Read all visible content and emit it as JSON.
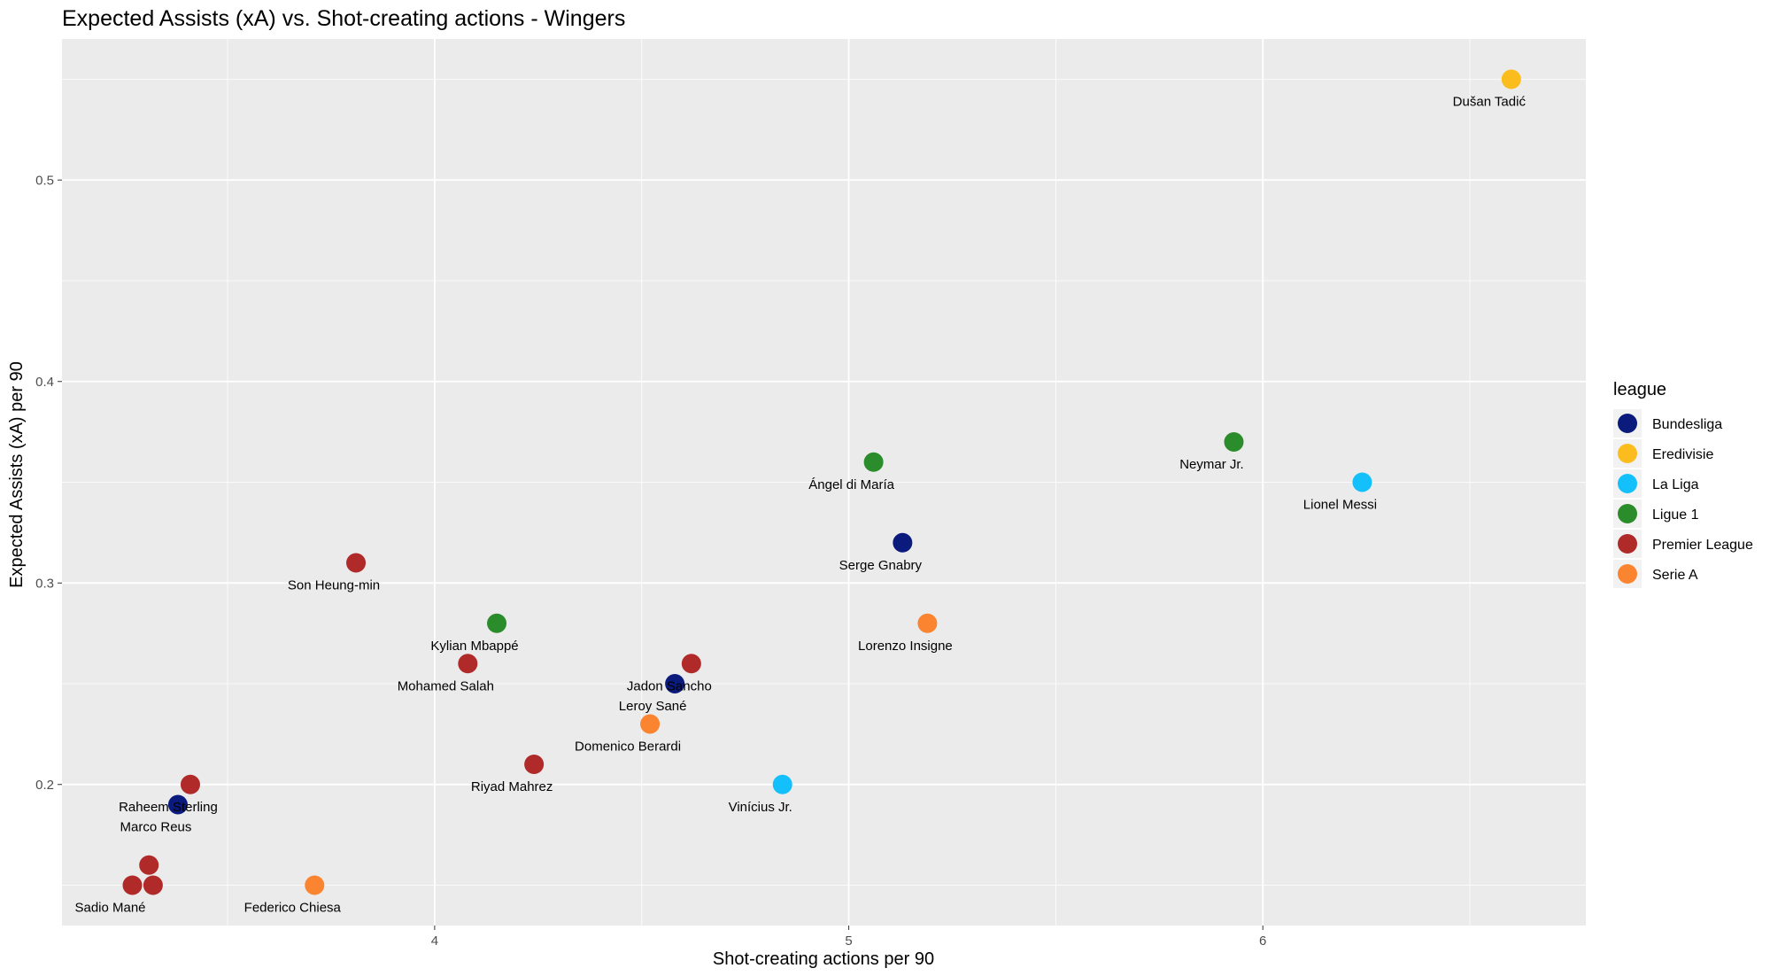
{
  "chart_data": {
    "type": "scatter",
    "title": "Expected Assists (xA) vs. Shot-creating actions - Wingers",
    "xlabel": "Shot-creating actions per 90",
    "ylabel": "Expected Assists (xA) per 90",
    "xlim": [
      3.1,
      6.78
    ],
    "ylim": [
      0.13,
      0.57
    ],
    "x_ticks": [
      4,
      5,
      6
    ],
    "y_ticks": [
      0.2,
      0.3,
      0.4,
      0.5
    ],
    "x_tick_labels": [
      "4",
      "5",
      "6"
    ],
    "y_tick_labels": [
      "0.2",
      "0.3",
      "0.4",
      "0.5"
    ],
    "grid": true,
    "legend": {
      "title": "league",
      "placement": "right",
      "entries": [
        {
          "name": "Bundesliga",
          "color": "#0a1a7d"
        },
        {
          "name": "Eredivisie",
          "color": "#fbbc1e"
        },
        {
          "name": "La Liga",
          "color": "#14c0fb"
        },
        {
          "name": "Ligue 1",
          "color": "#2a8c2a"
        },
        {
          "name": "Premier League",
          "color": "#b02a2a"
        },
        {
          "name": "Serie A",
          "color": "#fb8430"
        }
      ]
    },
    "points": [
      {
        "x": 6.6,
        "y": 0.55,
        "league": "Eredivisie",
        "label": "Dušan Tadić"
      },
      {
        "x": 5.93,
        "y": 0.37,
        "league": "Ligue 1",
        "label": "Neymar Jr."
      },
      {
        "x": 6.24,
        "y": 0.35,
        "league": "La Liga",
        "label": "Lionel Messi"
      },
      {
        "x": 5.06,
        "y": 0.36,
        "league": "Ligue 1",
        "label": "Ángel di María"
      },
      {
        "x": 5.13,
        "y": 0.32,
        "league": "Bundesliga",
        "label": "Serge Gnabry"
      },
      {
        "x": 5.19,
        "y": 0.28,
        "league": "Serie A",
        "label": "Lorenzo Insigne"
      },
      {
        "x": 3.81,
        "y": 0.31,
        "league": "Premier League",
        "label": "Son Heung-min"
      },
      {
        "x": 4.15,
        "y": 0.28,
        "league": "Ligue 1",
        "label": "Kylian Mbappé"
      },
      {
        "x": 4.08,
        "y": 0.26,
        "league": "Premier League",
        "label": "Mohamed Salah"
      },
      {
        "x": 4.62,
        "y": 0.26,
        "league": "Premier League",
        "label": "Jadon Sancho"
      },
      {
        "x": 4.58,
        "y": 0.25,
        "league": "Bundesliga",
        "label": "Leroy Sané"
      },
      {
        "x": 4.52,
        "y": 0.23,
        "league": "Serie A",
        "label": "Domenico Berardi"
      },
      {
        "x": 4.24,
        "y": 0.21,
        "league": "Premier League",
        "label": "Riyad Mahrez"
      },
      {
        "x": 4.84,
        "y": 0.2,
        "league": "La Liga",
        "label": "Vinícius Jr."
      },
      {
        "x": 3.41,
        "y": 0.2,
        "league": "Premier League",
        "label": "Raheem Sterling"
      },
      {
        "x": 3.38,
        "y": 0.19,
        "league": "Bundesliga",
        "label": "Marco Reus"
      },
      {
        "x": 3.31,
        "y": 0.16,
        "league": "Premier League",
        "label": ""
      },
      {
        "x": 3.27,
        "y": 0.15,
        "league": "Premier League",
        "label": "Sadio Mané"
      },
      {
        "x": 3.32,
        "y": 0.15,
        "league": "Premier League",
        "label": ""
      },
      {
        "x": 3.71,
        "y": 0.15,
        "league": "Serie A",
        "label": "Federico Chiesa"
      }
    ]
  }
}
